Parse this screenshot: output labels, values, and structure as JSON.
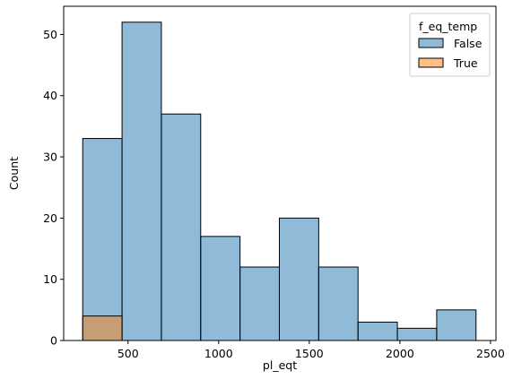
{
  "chart_data": {
    "type": "bar",
    "xlabel": "pl_eqt",
    "ylabel": "Count",
    "xlim": [
      145,
      2530
    ],
    "ylim": [
      0,
      54.6
    ],
    "bin_edges": [
      250,
      467,
      684,
      901,
      1118,
      1335,
      1552,
      1769,
      1986,
      2203,
      2420
    ],
    "x_ticks": [
      500,
      1000,
      1500,
      2000,
      2500
    ],
    "y_ticks": [
      0,
      10,
      20,
      30,
      40,
      50
    ],
    "series": [
      {
        "name": "False",
        "values": [
          33,
          52,
          37,
          17,
          12,
          20,
          12,
          3,
          2,
          5
        ],
        "color": "#1f77b4"
      },
      {
        "name": "True",
        "values": [
          4,
          0,
          0,
          0,
          0,
          0,
          0,
          0,
          0,
          0
        ],
        "color": "#ff7f0e"
      }
    ],
    "legend": {
      "title": "f_eq_temp",
      "placement": "top-right"
    },
    "grid": false
  }
}
